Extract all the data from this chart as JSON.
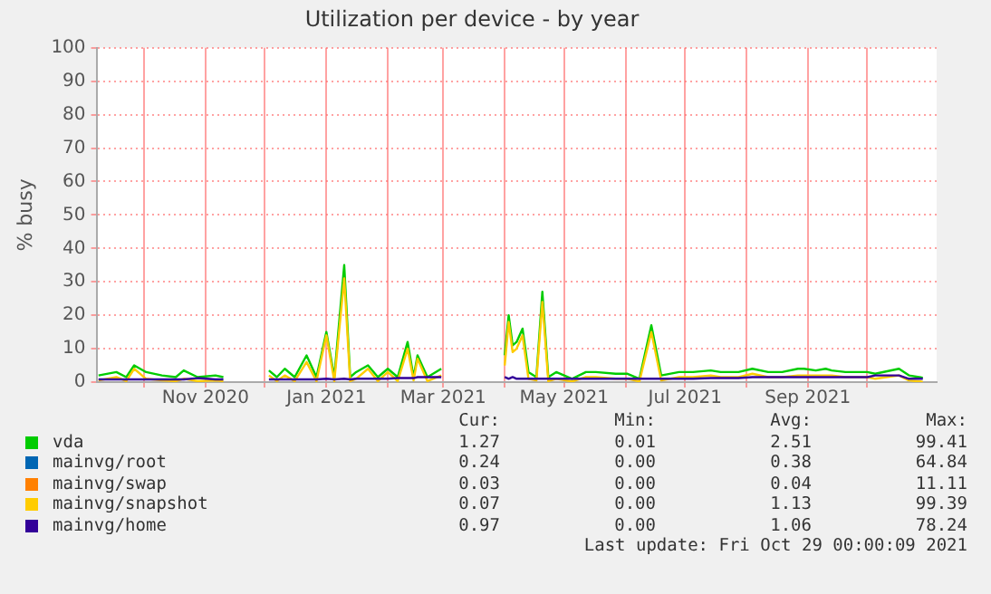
{
  "chart_data": {
    "type": "line",
    "title": "Utilization per device - by year",
    "ylabel": "% busy",
    "x": [
      "2020-09-08",
      "2020-09-17",
      "2020-09-22",
      "2020-09-26",
      "2020-10-02",
      "2020-10-10",
      "2020-10-17",
      "2020-10-21",
      "2020-10-28",
      "2020-11-06",
      "2020-11-10",
      "2020-11-20",
      "2020-12-03",
      "2020-12-07",
      "2020-12-11",
      "2020-12-16",
      "2020-12-22",
      "2020-12-27",
      "2021-01-01",
      "2021-01-05",
      "2021-01-10",
      "2021-01-13",
      "2021-01-16",
      "2021-01-22",
      "2021-01-27",
      "2021-02-01",
      "2021-02-06",
      "2021-02-11",
      "2021-02-14",
      "2021-02-16",
      "2021-02-21",
      "2021-02-28",
      "2021-03-15",
      "2021-04-01",
      "2021-04-03",
      "2021-04-05",
      "2021-04-07",
      "2021-04-10",
      "2021-04-13",
      "2021-04-17",
      "2021-04-20",
      "2021-04-23",
      "2021-04-27",
      "2021-05-05",
      "2021-05-12",
      "2021-05-17",
      "2021-05-27",
      "2021-06-02",
      "2021-06-08",
      "2021-06-14",
      "2021-06-19",
      "2021-06-28",
      "2021-07-05",
      "2021-07-14",
      "2021-07-19",
      "2021-07-28",
      "2021-08-04",
      "2021-08-12",
      "2021-08-19",
      "2021-08-27",
      "2021-08-30",
      "2021-09-05",
      "2021-09-10",
      "2021-09-13",
      "2021-09-20",
      "2021-09-23",
      "2021-10-01",
      "2021-10-05",
      "2021-10-17",
      "2021-10-22",
      "2021-10-29"
    ],
    "series": [
      {
        "name": "vda",
        "color": "#00cc00",
        "values": [
          2,
          3,
          1.5,
          5,
          3,
          2,
          1.5,
          3.5,
          1.5,
          2,
          1.5,
          null,
          3.5,
          1.5,
          4,
          1.5,
          8,
          1.5,
          15,
          1.5,
          35,
          1.5,
          3,
          5,
          1.5,
          4,
          1.5,
          12,
          1.5,
          8,
          1.5,
          4,
          null,
          8,
          20,
          11,
          12,
          16,
          3,
          1.5,
          27,
          1.5,
          3,
          1,
          3,
          3,
          2.5,
          2.5,
          1,
          17,
          2,
          3,
          3,
          3.5,
          3,
          3,
          4,
          3,
          3,
          4,
          4,
          3.5,
          4,
          3.5,
          3,
          3,
          3,
          2.5,
          4,
          2,
          1.3
        ]
      },
      {
        "name": "mainvg/root",
        "color": "#0066b3",
        "values": [
          null,
          null,
          null,
          null,
          null,
          null,
          null,
          null,
          null,
          null,
          null,
          null,
          null,
          null,
          null,
          null,
          null,
          null,
          null,
          null,
          null,
          null,
          null,
          null,
          null,
          null,
          null,
          null,
          null,
          null,
          null,
          null,
          null,
          null,
          null,
          null,
          null,
          null,
          null,
          null,
          null,
          null,
          null,
          null,
          null,
          null,
          null,
          null,
          null,
          null,
          null,
          null,
          null,
          null,
          null,
          null,
          null,
          null,
          null,
          null,
          null,
          null,
          null,
          null,
          null,
          null,
          null,
          null,
          null,
          null,
          null
        ]
      },
      {
        "name": "mainvg/swap",
        "color": "#ff8000",
        "values": [
          null,
          null,
          null,
          null,
          null,
          null,
          null,
          null,
          null,
          null,
          null,
          null,
          null,
          null,
          null,
          null,
          null,
          null,
          null,
          null,
          null,
          null,
          null,
          null,
          null,
          null,
          null,
          null,
          null,
          null,
          null,
          null,
          null,
          null,
          null,
          null,
          null,
          null,
          null,
          null,
          null,
          null,
          null,
          null,
          null,
          null,
          null,
          null,
          null,
          null,
          null,
          null,
          null,
          null,
          null,
          null,
          null,
          null,
          null,
          null,
          null,
          null,
          null,
          null,
          null,
          null,
          null,
          null,
          null,
          null,
          null
        ]
      },
      {
        "name": "mainvg/snapshot",
        "color": "#ffcc00",
        "values": [
          0.5,
          1.5,
          0.3,
          4,
          1,
          0.5,
          0.3,
          1,
          0.3,
          0.5,
          0.3,
          null,
          2,
          0.3,
          2,
          0.3,
          6,
          0.3,
          14,
          0.3,
          31,
          0.3,
          1,
          4,
          0.3,
          3,
          0.3,
          10,
          0.5,
          7,
          0.3,
          2,
          null,
          5,
          18,
          9,
          10,
          14,
          1,
          0.5,
          24,
          0.3,
          1,
          0.2,
          1.5,
          1.5,
          1,
          1,
          0.2,
          15,
          0.5,
          1.5,
          1.5,
          2,
          1.5,
          1.5,
          2.5,
          1.5,
          1.5,
          2,
          2,
          2,
          2,
          2,
          1.5,
          1.5,
          1.5,
          1,
          2,
          0.5,
          0.1
        ]
      },
      {
        "name": "mainvg/home",
        "color": "#330099",
        "values": [
          0.8,
          0.8,
          0.8,
          0.8,
          0.8,
          0.8,
          0.8,
          0.8,
          1.2,
          0.8,
          0.8,
          null,
          0.8,
          0.8,
          0.8,
          0.8,
          0.8,
          0.8,
          1,
          0.8,
          1,
          0.8,
          1,
          1,
          1,
          1,
          1.2,
          1.2,
          1.2,
          1.5,
          1.5,
          1.5,
          null,
          1.5,
          1,
          1.5,
          1,
          1,
          1,
          1,
          1,
          1,
          1,
          1,
          1,
          1,
          1,
          1,
          1,
          1,
          1,
          1,
          1,
          1.2,
          1.2,
          1.2,
          1.5,
          1.5,
          1.5,
          1.5,
          1.5,
          1.5,
          1.5,
          1.5,
          1.5,
          1.5,
          1.5,
          2,
          2,
          1,
          1
        ]
      }
    ],
    "xlim": [
      "2020-09-07",
      "2021-11-05"
    ],
    "xticks": [
      {
        "value": "2020-10-01",
        "label": null
      },
      {
        "value": "2020-11-01",
        "label": "Nov 2020"
      },
      {
        "value": "2020-12-01",
        "label": null
      },
      {
        "value": "2021-01-01",
        "label": "Jan 2021"
      },
      {
        "value": "2021-02-01",
        "label": null
      },
      {
        "value": "2021-03-01",
        "label": "Mar 2021"
      },
      {
        "value": "2021-04-01",
        "label": null
      },
      {
        "value": "2021-05-01",
        "label": "May 2021"
      },
      {
        "value": "2021-06-01",
        "label": null
      },
      {
        "value": "2021-07-01",
        "label": "Jul 2021"
      },
      {
        "value": "2021-08-01",
        "label": null
      },
      {
        "value": "2021-09-01",
        "label": "Sep 2021"
      },
      {
        "value": "2021-10-01",
        "label": null
      }
    ],
    "ylim": [
      0,
      100
    ],
    "yticks": [
      0,
      10,
      20,
      30,
      40,
      50,
      60,
      70,
      80,
      90,
      100
    ],
    "grid": true,
    "legend": "bottom",
    "marker": "none",
    "line_style": "solid",
    "annotations": [
      "Cur:",
      "Min:",
      "Avg:",
      "Max:",
      "1.27",
      "0.01",
      "2.51",
      "99.41",
      "0.24",
      "0.00",
      "0.38",
      "64.84",
      "0.03",
      "0.00",
      "0.04",
      "11.11",
      "0.07",
      "0.00",
      "1.13",
      "99.39",
      "0.97",
      "0.00",
      "1.06",
      "78.24",
      "Last update: Fri Oct 29 00:00:09 2021"
    ]
  }
}
